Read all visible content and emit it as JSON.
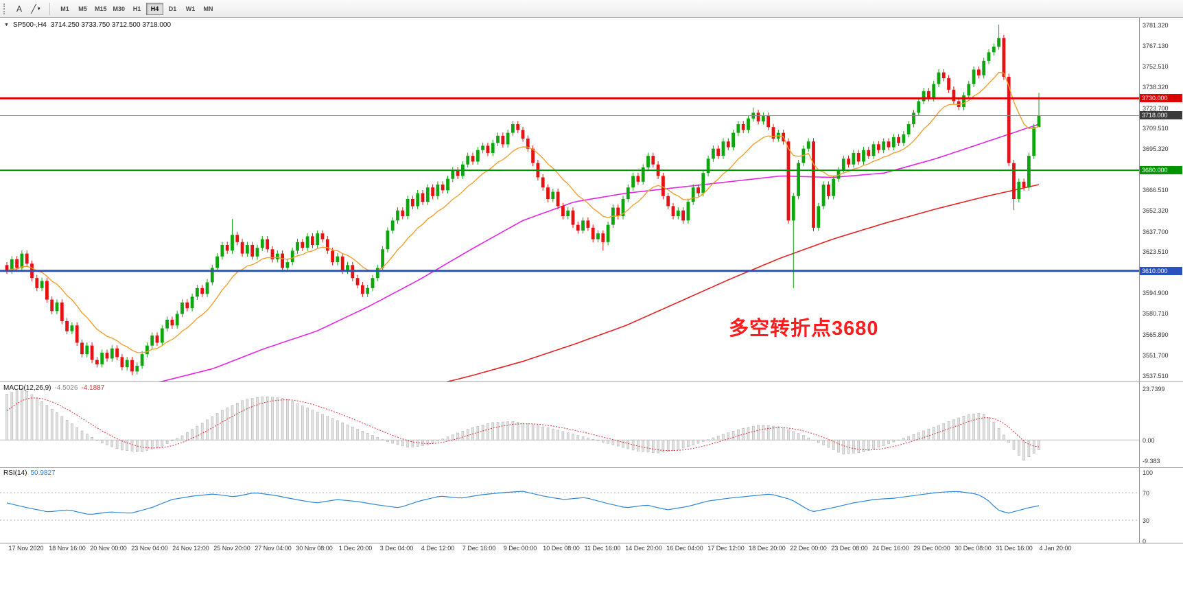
{
  "toolbar": {
    "icons": {
      "text_tool": "A",
      "line_tool": "╱",
      "caret": "▾"
    },
    "timeframes": [
      "M1",
      "M5",
      "M15",
      "M30",
      "H1",
      "H4",
      "D1",
      "W1",
      "MN"
    ],
    "active_timeframe": "H4"
  },
  "chart": {
    "expander": "▼",
    "symbol": "SP500-,H4",
    "ohlc": "3714.250 3733.750 3712.500 3718.000",
    "annotation": {
      "text": "多空转折点3680",
      "color": "#ff1c1c"
    },
    "colors": {
      "up": "#0fa50f",
      "down": "#e41212",
      "ma_fast": "#f0a030",
      "ma_mid": "#e326e3",
      "ma_slow": "#e32222",
      "current_line": "#8a8a8a"
    },
    "hlines": [
      {
        "price": 3730,
        "color": "#dd0000",
        "width": 3
      },
      {
        "price": 3680,
        "color": "#009500",
        "width": 2
      },
      {
        "price": 3610,
        "color": "#2a52be",
        "width": 3
      },
      {
        "price": 3718,
        "color": "#8a8a8a",
        "width": 1
      }
    ],
    "price_axis": {
      "ticks": [
        "3781.320",
        "3767.130",
        "3752.510",
        "3738.320",
        "3723.700",
        "3709.510",
        "3695.320",
        "3666.510",
        "3652.320",
        "3637.700",
        "3623.510",
        "3594.900",
        "3580.710",
        "3565.890",
        "3551.700",
        "3537.510"
      ],
      "badges": [
        {
          "text": "3730.000",
          "price": 3730,
          "color": "#dd0000"
        },
        {
          "text": "3718.000",
          "price": 3718,
          "color": "#3c3c3c"
        },
        {
          "text": "3680.000",
          "price": 3680,
          "color": "#009500"
        },
        {
          "text": "3610.000",
          "price": 3610,
          "color": "#2a52be"
        }
      ]
    }
  },
  "macd_panel": {
    "label": "MACD(12,26,9)",
    "value_main": "-4.5026",
    "value_signal": "-4.1887",
    "axis": [
      "23.7399",
      "0.00",
      "-9.383"
    ],
    "axis_values": [
      23.7399,
      0,
      -9.383
    ]
  },
  "rsi_panel": {
    "label": "RSI(14)",
    "value": "50.9827",
    "axis": [
      "100",
      "70",
      "30",
      "0"
    ],
    "axis_values": [
      100,
      70,
      30,
      0
    ]
  },
  "chart_data": {
    "type": "candlestick+indicators",
    "title": "SP500- H4",
    "price_range": [
      3537.51,
      3781.32
    ],
    "x_labels": [
      "17 Nov 2020",
      "18 Nov 16:00",
      "20 Nov 00:00",
      "23 Nov 04:00",
      "24 Nov 12:00",
      "25 Nov 20:00",
      "27 Nov 04:00",
      "30 Nov 08:00",
      "1 Dec 20:00",
      "3 Dec 04:00",
      "4 Dec 12:00",
      "7 Dec 16:00",
      "9 Dec 00:00",
      "10 Dec 08:00",
      "11 Dec 16:00",
      "14 Dec 20:00",
      "16 Dec 04:00",
      "17 Dec 12:00",
      "18 Dec 20:00",
      "22 Dec 00:00",
      "23 Dec 08:00",
      "24 Dec 16:00",
      "29 Dec 00:00",
      "30 Dec 08:00",
      "31 Dec 16:00",
      "4 Jan 20:00"
    ],
    "candles_close": [
      3610,
      3618,
      3612,
      3622,
      3615,
      3605,
      3598,
      3603,
      3590,
      3582,
      3588,
      3575,
      3568,
      3572,
      3560,
      3552,
      3558,
      3548,
      3545,
      3553,
      3549,
      3556,
      3550,
      3543,
      3548,
      3540,
      3544,
      3552,
      3558,
      3565,
      3560,
      3570,
      3576,
      3572,
      3580,
      3588,
      3584,
      3592,
      3598,
      3594,
      3602,
      3612,
      3620,
      3628,
      3624,
      3635,
      3630,
      3622,
      3628,
      3620,
      3626,
      3632,
      3625,
      3618,
      3622,
      3612,
      3616,
      3624,
      3630,
      3626,
      3634,
      3628,
      3636,
      3632,
      3624,
      3616,
      3620,
      3610,
      3614,
      3605,
      3600,
      3594,
      3598,
      3605,
      3612,
      3625,
      3638,
      3645,
      3652,
      3648,
      3660,
      3655,
      3664,
      3658,
      3668,
      3662,
      3670,
      3666,
      3674,
      3680,
      3676,
      3684,
      3690,
      3686,
      3694,
      3697,
      3692,
      3699,
      3704,
      3698,
      3706,
      3712,
      3708,
      3702,
      3695,
      3685,
      3675,
      3668,
      3660,
      3665,
      3655,
      3648,
      3652,
      3642,
      3638,
      3645,
      3640,
      3632,
      3636,
      3630,
      3642,
      3654,
      3648,
      3660,
      3668,
      3676,
      3672,
      3682,
      3690,
      3684,
      3676,
      3662,
      3655,
      3648,
      3652,
      3645,
      3658,
      3668,
      3664,
      3678,
      3688,
      3695,
      3690,
      3700,
      3696,
      3706,
      3712,
      3708,
      3716,
      3720,
      3714,
      3718,
      3710,
      3702,
      3706,
      3700,
      3645,
      3662,
      3685,
      3695,
      3700,
      3640,
      3655,
      3670,
      3662,
      3674,
      3680,
      3688,
      3684,
      3692,
      3686,
      3694,
      3690,
      3698,
      3694,
      3700,
      3696,
      3703,
      3699,
      3705,
      3712,
      3720,
      3728,
      3735,
      3730,
      3740,
      3748,
      3744,
      3736,
      3728,
      3724,
      3732,
      3740,
      3750,
      3746,
      3756,
      3762,
      3766,
      3772,
      3745,
      3685,
      3660,
      3672,
      3668,
      3690,
      3710,
      3718
    ],
    "wick_overrides": {
      "25": {
        "low": 3537.5
      },
      "45": {
        "high": 3646
      },
      "119": {
        "low": 3624
      },
      "149": {
        "high": 3723.5
      },
      "157": {
        "low": 3598
      },
      "161": {
        "low": 3637.7
      },
      "198": {
        "high": 3781.3
      },
      "201": {
        "low": 3652.3
      },
      "206": {
        "high": 3733.8,
        "low": 3712.5
      }
    },
    "ma_fast_period": 13,
    "ma_mid_waypoints": [
      [
        0,
        3518
      ],
      [
        0.05,
        3522
      ],
      [
        0.1,
        3527
      ],
      [
        0.15,
        3533
      ],
      [
        0.2,
        3542
      ],
      [
        0.25,
        3556
      ],
      [
        0.3,
        3568
      ],
      [
        0.35,
        3585
      ],
      [
        0.4,
        3604
      ],
      [
        0.45,
        3625
      ],
      [
        0.5,
        3645
      ],
      [
        0.55,
        3658
      ],
      [
        0.6,
        3664
      ],
      [
        0.65,
        3668
      ],
      [
        0.7,
        3672
      ],
      [
        0.75,
        3676
      ],
      [
        0.8,
        3675
      ],
      [
        0.85,
        3678
      ],
      [
        0.9,
        3688
      ],
      [
        0.95,
        3700
      ],
      [
        1,
        3712
      ]
    ],
    "ma_slow_waypoints": [
      [
        0,
        3458
      ],
      [
        0.1,
        3476
      ],
      [
        0.2,
        3494
      ],
      [
        0.3,
        3512
      ],
      [
        0.4,
        3528
      ],
      [
        0.45,
        3537
      ],
      [
        0.5,
        3547
      ],
      [
        0.55,
        3559
      ],
      [
        0.6,
        3572
      ],
      [
        0.65,
        3588
      ],
      [
        0.7,
        3604
      ],
      [
        0.75,
        3619
      ],
      [
        0.8,
        3632
      ],
      [
        0.85,
        3643
      ],
      [
        0.9,
        3653
      ],
      [
        0.95,
        3662
      ],
      [
        1,
        3670
      ]
    ],
    "macd": {
      "range": [
        -9.383,
        23.7399
      ],
      "signal_period": 9,
      "histogram_waypoints": [
        [
          0,
          21
        ],
        [
          0.015,
          23.7
        ],
        [
          0.03,
          19
        ],
        [
          0.05,
          12
        ],
        [
          0.07,
          5
        ],
        [
          0.09,
          -1
        ],
        [
          0.11,
          -4.5
        ],
        [
          0.13,
          -5.5
        ],
        [
          0.15,
          -3
        ],
        [
          0.17,
          2
        ],
        [
          0.19,
          8
        ],
        [
          0.21,
          14
        ],
        [
          0.23,
          18.5
        ],
        [
          0.25,
          20
        ],
        [
          0.27,
          19
        ],
        [
          0.29,
          15
        ],
        [
          0.31,
          11
        ],
        [
          0.33,
          7
        ],
        [
          0.35,
          3
        ],
        [
          0.37,
          -1
        ],
        [
          0.39,
          -3.5
        ],
        [
          0.41,
          -2
        ],
        [
          0.43,
          2
        ],
        [
          0.45,
          5.5
        ],
        [
          0.47,
          8
        ],
        [
          0.49,
          8.5
        ],
        [
          0.51,
          7
        ],
        [
          0.53,
          5
        ],
        [
          0.55,
          2.5
        ],
        [
          0.57,
          0
        ],
        [
          0.59,
          -2.5
        ],
        [
          0.61,
          -5
        ],
        [
          0.63,
          -6
        ],
        [
          0.65,
          -4.5
        ],
        [
          0.67,
          -1.5
        ],
        [
          0.69,
          2
        ],
        [
          0.71,
          5
        ],
        [
          0.73,
          7
        ],
        [
          0.75,
          6
        ],
        [
          0.77,
          2.5
        ],
        [
          0.79,
          -2
        ],
        [
          0.81,
          -6.5
        ],
        [
          0.83,
          -5.5
        ],
        [
          0.85,
          -2.5
        ],
        [
          0.87,
          1
        ],
        [
          0.89,
          4.5
        ],
        [
          0.91,
          8
        ],
        [
          0.93,
          11.5
        ],
        [
          0.945,
          12.5
        ],
        [
          0.955,
          9
        ],
        [
          0.965,
          3
        ],
        [
          0.975,
          -4
        ],
        [
          0.985,
          -9.4
        ],
        [
          1,
          -4.5
        ]
      ]
    },
    "rsi": {
      "range": [
        0,
        100
      ],
      "levels": [
        70,
        30
      ],
      "waypoints": [
        [
          0,
          55
        ],
        [
          0.02,
          48
        ],
        [
          0.04,
          42
        ],
        [
          0.06,
          45
        ],
        [
          0.08,
          38
        ],
        [
          0.1,
          42
        ],
        [
          0.12,
          40
        ],
        [
          0.14,
          48
        ],
        [
          0.16,
          60
        ],
        [
          0.18,
          65
        ],
        [
          0.2,
          68
        ],
        [
          0.22,
          64
        ],
        [
          0.24,
          70
        ],
        [
          0.26,
          66
        ],
        [
          0.28,
          60
        ],
        [
          0.3,
          55
        ],
        [
          0.32,
          60
        ],
        [
          0.34,
          57
        ],
        [
          0.36,
          52
        ],
        [
          0.38,
          48
        ],
        [
          0.4,
          58
        ],
        [
          0.42,
          65
        ],
        [
          0.44,
          62
        ],
        [
          0.46,
          67
        ],
        [
          0.48,
          70
        ],
        [
          0.5,
          72
        ],
        [
          0.52,
          65
        ],
        [
          0.54,
          60
        ],
        [
          0.56,
          63
        ],
        [
          0.58,
          55
        ],
        [
          0.6,
          48
        ],
        [
          0.62,
          52
        ],
        [
          0.64,
          45
        ],
        [
          0.66,
          50
        ],
        [
          0.68,
          58
        ],
        [
          0.7,
          62
        ],
        [
          0.72,
          65
        ],
        [
          0.74,
          68
        ],
        [
          0.76,
          60
        ],
        [
          0.78,
          42
        ],
        [
          0.8,
          48
        ],
        [
          0.82,
          55
        ],
        [
          0.84,
          60
        ],
        [
          0.86,
          62
        ],
        [
          0.88,
          66
        ],
        [
          0.9,
          70
        ],
        [
          0.92,
          72
        ],
        [
          0.94,
          68
        ],
        [
          0.95,
          60
        ],
        [
          0.96,
          45
        ],
        [
          0.97,
          40
        ],
        [
          0.98,
          44
        ],
        [
          0.99,
          48
        ],
        [
          1,
          51
        ]
      ]
    }
  }
}
